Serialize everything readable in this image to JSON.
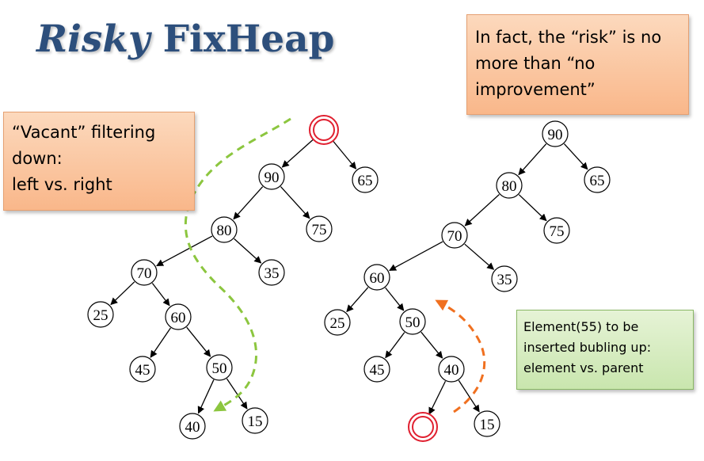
{
  "title": {
    "italic": "Risky",
    "rest": "FixHeap"
  },
  "callouts": {
    "vacant": [
      "“Vacant” filtering",
      "down:",
      "left vs. right"
    ],
    "risk": [
      "In fact, the “risk” is no",
      "more than “no",
      "improvement”"
    ],
    "element": [
      "Element(55) to be",
      "inserted bubling up:",
      "element vs. parent"
    ]
  },
  "left_tree": {
    "root": "",
    "nodes": [
      "90",
      "65",
      "80",
      "75",
      "70",
      "35",
      "25",
      "60",
      "45",
      "50",
      "40",
      "15"
    ]
  },
  "right_tree": {
    "nodes": [
      "90",
      "65",
      "80",
      "75",
      "70",
      "35",
      "60",
      "25",
      "50",
      "45",
      "40",
      "15"
    ],
    "vacant": ""
  },
  "colors": {
    "vacant_circle": "#e02030",
    "green_arrow": "#8cc63f",
    "orange_arrow": "#f07020",
    "title": "#2d4f7c"
  }
}
